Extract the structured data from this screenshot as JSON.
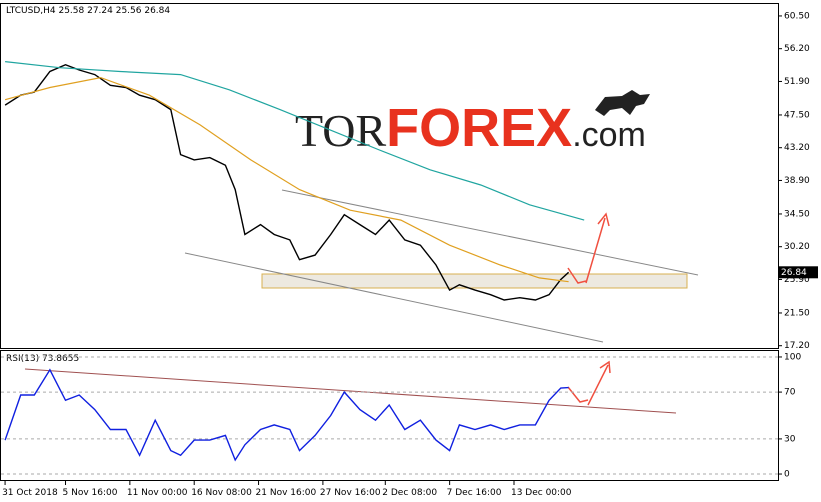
{
  "chart_data": [
    {
      "type": "line",
      "title": "LTCUSD,H4 25.58 27.24 25.56 26.84",
      "xlim": [
        -2.6,
        396.4
      ],
      "xticks": [
        {
          "value": 0,
          "label": "31 Oct 2018"
        },
        {
          "value": 31,
          "label": "5 Nov 16:00"
        },
        {
          "value": 64,
          "label": "11 Nov 00:00"
        },
        {
          "value": 97,
          "label": "16 Nov 08:00"
        },
        {
          "value": 130,
          "label": "21 Nov 16:00"
        },
        {
          "value": 163,
          "label": "27 Nov 16:00"
        },
        {
          "value": 195,
          "label": "2 Dec 08:00"
        },
        {
          "value": 228,
          "label": "7 Dec 16:00"
        },
        {
          "value": 261,
          "label": "13 Dec 00:00"
        }
      ],
      "ylim": [
        16.9,
        62.2
      ],
      "yticks": [
        {
          "value": 60.5,
          "label": "60.50"
        },
        {
          "value": 56.2,
          "label": "56.20"
        },
        {
          "value": 51.9,
          "label": "51.90"
        },
        {
          "value": 47.5,
          "label": "47.50"
        },
        {
          "value": 43.2,
          "label": "43.20"
        },
        {
          "value": 38.9,
          "label": "38.90"
        },
        {
          "value": 34.5,
          "label": "34.50"
        },
        {
          "value": 30.2,
          "label": "30.20"
        },
        {
          "value": 25.9,
          "label": "25.90"
        },
        {
          "value": 21.5,
          "label": "21.50"
        },
        {
          "value": 17.2,
          "label": "17.20"
        }
      ],
      "last_value": 26.84,
      "series": [
        {
          "color": "#000000",
          "x": [
            0,
            8,
            15,
            23,
            31,
            38,
            46,
            54,
            62,
            69,
            77,
            85,
            90,
            97,
            105,
            113,
            118,
            123,
            131,
            138,
            146,
            151,
            159,
            167,
            174,
            182,
            190,
            197,
            205,
            213,
            221,
            228,
            233,
            241,
            249,
            256,
            264,
            272,
            279,
            285,
            289
          ],
          "values": [
            48.8,
            50.1,
            50.5,
            53.2,
            54.1,
            53.4,
            52.8,
            51.4,
            51.1,
            50.1,
            49.5,
            48.2,
            42.3,
            41.6,
            41.9,
            40.9,
            37.7,
            31.8,
            33.1,
            31.8,
            31.1,
            28.5,
            29.1,
            31.8,
            34.4,
            33.1,
            31.8,
            33.7,
            31.1,
            30.4,
            27.8,
            24.5,
            25.2,
            24.5,
            23.9,
            23.2,
            23.5,
            23.2,
            23.9,
            25.9,
            26.84
          ]
        },
        {
          "color": "#20a5a0",
          "x": [
            0,
            28,
            59,
            90,
            115,
            141,
            167,
            192,
            218,
            244,
            269,
            297
          ],
          "values": [
            54.5,
            53.7,
            53.2,
            52.8,
            50.8,
            48.2,
            45.5,
            42.9,
            40.3,
            38.3,
            35.7,
            33.7
          ]
        },
        {
          "color": "#e0a020",
          "x": [
            0,
            23,
            49,
            74,
            100,
            126,
            151,
            177,
            203,
            228,
            254,
            274,
            289
          ],
          "values": [
            49.5,
            51.1,
            52.4,
            50.1,
            46.2,
            41.6,
            37.7,
            35.0,
            33.7,
            30.4,
            27.8,
            26.1,
            25.6
          ]
        }
      ]
    },
    {
      "type": "line",
      "title": "RSI(13) 73.8655",
      "xlim": [
        -2.6,
        396.4
      ],
      "ylim": [
        -5.1,
        105.1
      ],
      "yticks": [
        100,
        70,
        30,
        0
      ],
      "grid": true,
      "series": [
        {
          "color": "#1020e0",
          "x": [
            0,
            8,
            15,
            23,
            31,
            38,
            46,
            54,
            62,
            69,
            77,
            85,
            90,
            97,
            105,
            113,
            118,
            123,
            131,
            138,
            146,
            151,
            159,
            167,
            174,
            182,
            190,
            197,
            205,
            213,
            221,
            228,
            233,
            241,
            249,
            256,
            264,
            272,
            279,
            285,
            289
          ],
          "values": [
            29,
            67.5,
            67.5,
            89,
            63,
            67.5,
            55,
            38,
            38,
            16,
            46,
            20,
            16,
            29,
            29,
            33,
            12,
            25,
            38,
            42,
            38,
            20,
            33,
            50,
            70,
            55,
            46,
            59,
            38,
            46,
            29,
            20,
            42,
            38,
            42,
            38,
            42,
            42,
            63,
            73.5,
            73.87
          ]
        }
      ]
    }
  ],
  "logo": {
    "part1": "TOR",
    "part2": "FOREX",
    "part3": ".com"
  }
}
